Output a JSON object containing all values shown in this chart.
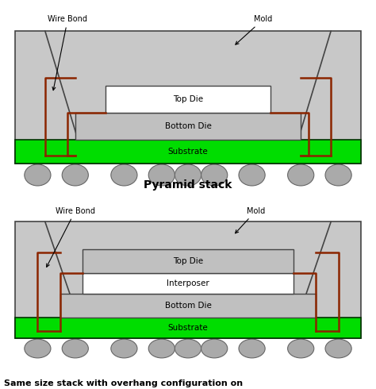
{
  "bg_color": "#ffffff",
  "mold_color": "#c8c8c8",
  "mold_edge_color": "#444444",
  "top_die_fill": "#ffffff",
  "top_die_edge": "#444444",
  "bottom_die_fill": "#c0c0c0",
  "bottom_die_edge": "#444444",
  "interposer_fill": "#ffffff",
  "interposer_edge": "#444444",
  "substrate_fill": "#00dd00",
  "substrate_edge": "#003300",
  "wire_color": "#8B2500",
  "ball_fill": "#aaaaaa",
  "ball_edge": "#666666",
  "title1": "Pyramid stack",
  "title2": "Same size stack with overhang configuration on",
  "lbl_wire_bond": "Wire Bond",
  "lbl_mold": "Mold",
  "lbl_top_die": "Top Die",
  "lbl_bottom_die": "Bottom Die",
  "lbl_substrate": "Substrate",
  "lbl_interposer": "Interposer"
}
